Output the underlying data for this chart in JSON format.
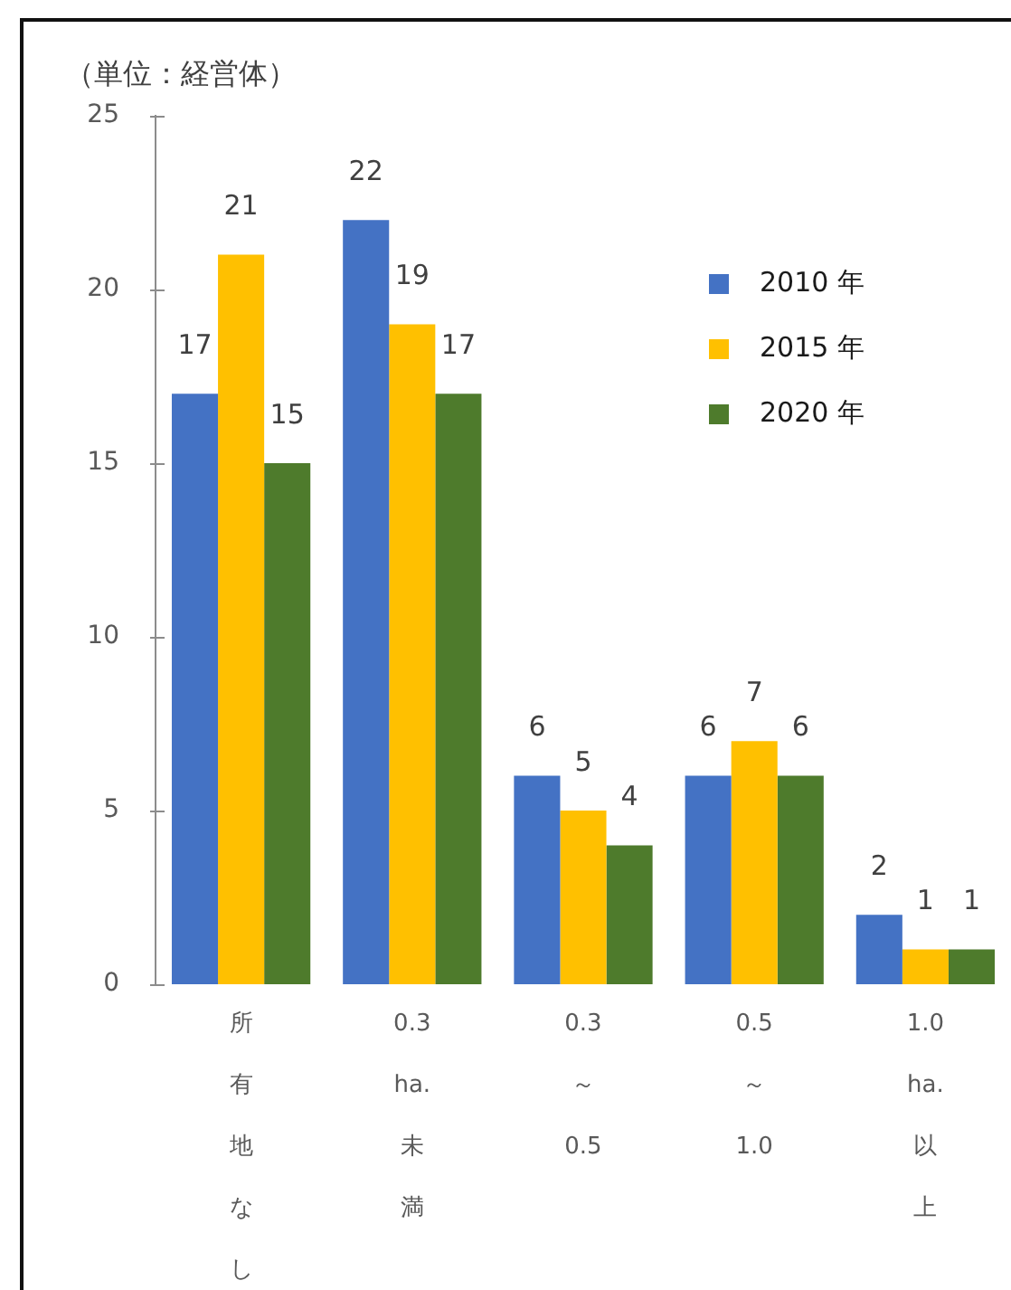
{
  "chart_data": {
    "type": "bar",
    "ylabel": "（単位：経営体）",
    "categories": [
      "所有地なし",
      "0.3ha.未満",
      "0.3～0.5",
      "0.5～1.0",
      "1.0ha.以上"
    ],
    "series": [
      {
        "name": "2010 年",
        "color": "#4472c4",
        "values": [
          17,
          22,
          6,
          6,
          2
        ]
      },
      {
        "name": "2015 年",
        "color": "#ffc000",
        "values": [
          21,
          19,
          5,
          7,
          1
        ]
      },
      {
        "name": "2020 年",
        "color": "#4e7b2c",
        "values": [
          15,
          17,
          4,
          6,
          1
        ]
      }
    ],
    "ylim": [
      0,
      25
    ],
    "yticks": [
      0,
      5,
      10,
      15,
      20,
      25
    ],
    "data_labels": true,
    "legend": "top right"
  }
}
